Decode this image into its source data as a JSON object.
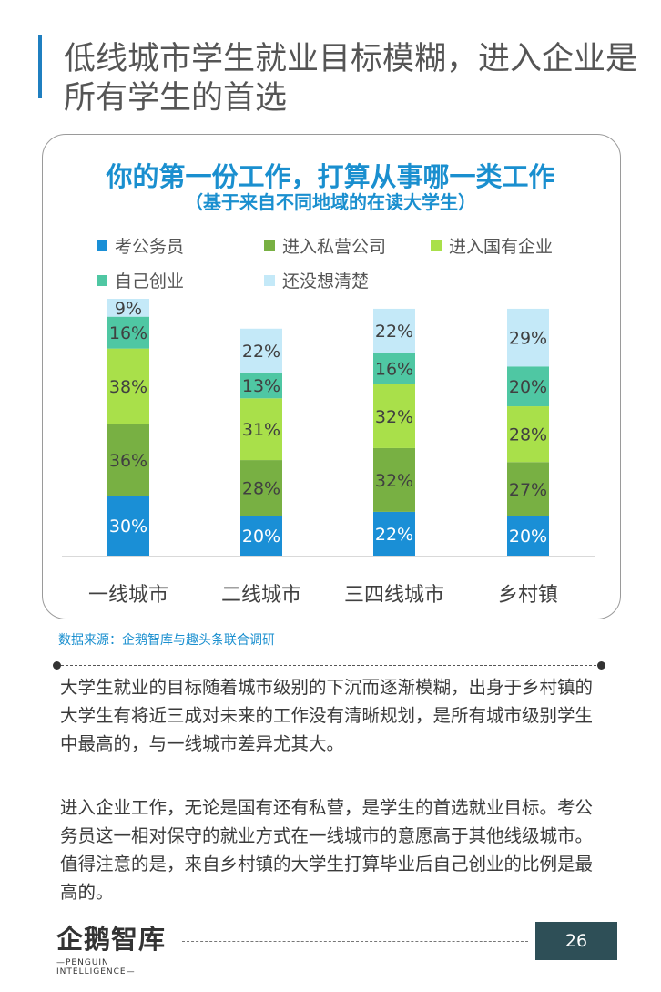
{
  "page": {
    "title": "低线城市学生就业目标模糊，进入企业是所有学生的首选",
    "source": "数据来源：企鹅智库与趣头条联合调研",
    "paragraphs": [
      "大学生就业的目标随着城市级别的下沉而逐渐模糊，出身于乡村镇的大学生有将近三成对未来的工作没有清晰规划，是所有城市级别学生中最高的，与一线城市差异尤其大。",
      "进入企业工作，无论是国有还有私营，是学生的首选就业目标。考公务员这一相对保守的就业方式在一线城市的意愿高于其他线级城市。值得注意的是，来自乡村镇的大学生打算毕业后自己创业的比例是最高的。"
    ],
    "logo": {
      "name": "企鹅智库",
      "tagline": "—PENGUIN INTELLIGENCE—"
    },
    "page_number": "26"
  },
  "chart_data": {
    "type": "bar",
    "stacked": true,
    "title": "你的第一份工作，打算从事哪一类工作",
    "subtitle": "（基于来自不同地域的在读大学生）",
    "categories": [
      "一线城市",
      "二线城市",
      "三四线城市",
      "乡村镇"
    ],
    "series": [
      {
        "name": "考公务员",
        "color": "#1a8fd6",
        "values": [
          30,
          20,
          22,
          20
        ]
      },
      {
        "name": "进入私营公司",
        "color": "#78b043",
        "values": [
          36,
          28,
          32,
          27
        ]
      },
      {
        "name": "进入国有企业",
        "color": "#a9e04a",
        "values": [
          38,
          31,
          32,
          28
        ]
      },
      {
        "name": "自己创业",
        "color": "#4fc7a3",
        "values": [
          16,
          13,
          16,
          20
        ]
      },
      {
        "name": "还没想清楚",
        "color": "#c4e9f8",
        "values": [
          9,
          22,
          22,
          29
        ]
      }
    ],
    "value_suffix": "%",
    "ylim": [
      0,
      129
    ],
    "legend_position": "top",
    "grid": false
  }
}
